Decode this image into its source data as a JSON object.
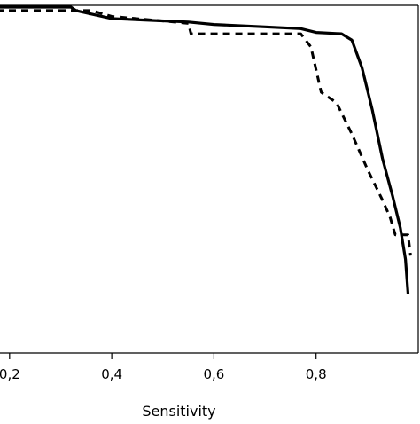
{
  "chart_data": {
    "type": "line",
    "title": "",
    "xlabel": "Sensitivity",
    "ylabel": "",
    "xlim": [
      0.15,
      1.0
    ],
    "ylim": [
      0.0,
      1.0
    ],
    "grid": false,
    "legend": "none",
    "x_ticks": [
      "0,2",
      "0,4",
      "0,6",
      "0,8"
    ],
    "x_tick_values": [
      0.2,
      0.4,
      0.6,
      0.8
    ],
    "series": [
      {
        "style": "solid",
        "color": "#000000",
        "points": [
          [
            0.15,
            0.995
          ],
          [
            0.32,
            0.995
          ],
          [
            0.33,
            0.985
          ],
          [
            0.36,
            0.975
          ],
          [
            0.4,
            0.962
          ],
          [
            0.46,
            0.958
          ],
          [
            0.55,
            0.952
          ],
          [
            0.6,
            0.945
          ],
          [
            0.7,
            0.938
          ],
          [
            0.77,
            0.933
          ],
          [
            0.8,
            0.922
          ],
          [
            0.85,
            0.918
          ],
          [
            0.87,
            0.9
          ],
          [
            0.89,
            0.82
          ],
          [
            0.91,
            0.7
          ],
          [
            0.93,
            0.56
          ],
          [
            0.95,
            0.45
          ],
          [
            0.965,
            0.36
          ],
          [
            0.975,
            0.27
          ],
          [
            0.98,
            0.17
          ]
        ]
      },
      {
        "style": "dashed",
        "color": "#000000",
        "points": [
          [
            0.15,
            0.985
          ],
          [
            0.36,
            0.985
          ],
          [
            0.4,
            0.968
          ],
          [
            0.5,
            0.955
          ],
          [
            0.55,
            0.948
          ],
          [
            0.555,
            0.918
          ],
          [
            0.77,
            0.918
          ],
          [
            0.79,
            0.88
          ],
          [
            0.81,
            0.75
          ],
          [
            0.84,
            0.72
          ],
          [
            0.87,
            0.63
          ],
          [
            0.9,
            0.53
          ],
          [
            0.93,
            0.44
          ],
          [
            0.945,
            0.39
          ],
          [
            0.955,
            0.34
          ],
          [
            0.98,
            0.34
          ],
          [
            0.985,
            0.28
          ]
        ]
      }
    ]
  }
}
